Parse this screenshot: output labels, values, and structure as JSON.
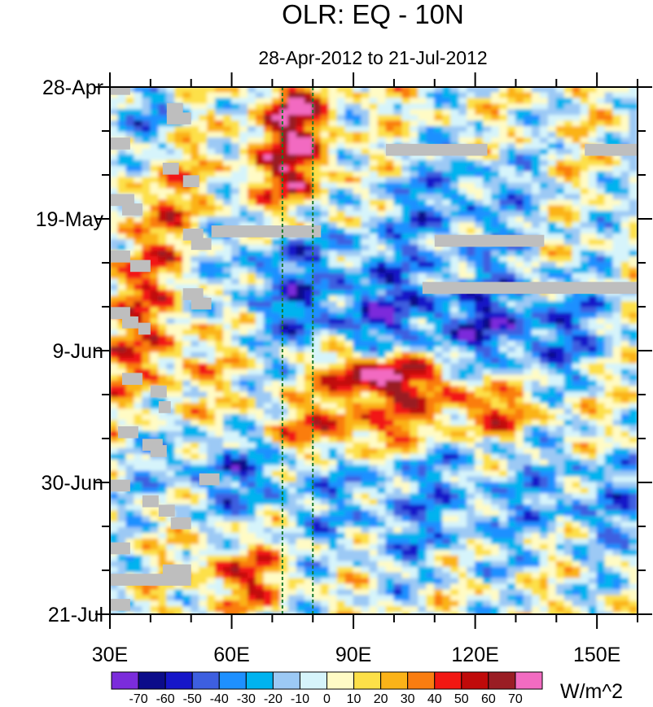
{
  "chart_data": {
    "type": "heatmap",
    "title": "OLR: EQ - 10N",
    "subtitle": "28-Apr-2012 to 21-Jul-2012",
    "x_tick_labels": [
      "30E",
      "60E",
      "90E",
      "120E",
      "150E"
    ],
    "x_tick_values": [
      30,
      60,
      90,
      120,
      150
    ],
    "x_range": [
      30,
      160
    ],
    "y_tick_labels": [
      "28-Apr",
      "19-May",
      "9-Jun",
      "30-Jun",
      "21-Jul"
    ],
    "y_tick_days": [
      0,
      21,
      42,
      63,
      84
    ],
    "y_range": [
      0,
      84
    ],
    "colorbar": {
      "units": "W/m^2",
      "labels": [
        "-70",
        "-60",
        "-50",
        "-40",
        "-30",
        "-20",
        "-10",
        "0",
        "10",
        "20",
        "30",
        "40",
        "50",
        "60",
        "70"
      ],
      "colors": [
        "#7b2cdb",
        "#0c0c8a",
        "#1616c8",
        "#3d5fe0",
        "#1e90ff",
        "#00b3ef",
        "#9cc9f5",
        "#d6f4fb",
        "#fffbc5",
        "#fde048",
        "#fbb318",
        "#fa7d10",
        "#f21712",
        "#c00a0a",
        "#9a1d24",
        "#f26bc1"
      ]
    },
    "reference_lines": {
      "style": "dashed",
      "color": "#1a7a2a",
      "longitudes": [
        72.5,
        80
      ]
    },
    "missing_color": "#bebebe",
    "missing_segments": [
      {
        "day": 0.3,
        "lon0": 30,
        "lon1": 35
      },
      {
        "day": 3.5,
        "lon0": 44,
        "lon1": 48
      },
      {
        "day": 5.0,
        "lon0": 44,
        "lon1": 50
      },
      {
        "day": 9.0,
        "lon0": 30,
        "lon1": 35
      },
      {
        "day": 10.0,
        "lon0": 98,
        "lon1": 123
      },
      {
        "day": 10.0,
        "lon0": 147,
        "lon1": 160
      },
      {
        "day": 13.0,
        "lon0": 43,
        "lon1": 47
      },
      {
        "day": 15.0,
        "lon0": 48,
        "lon1": 52
      },
      {
        "day": 18.0,
        "lon0": 30,
        "lon1": 36
      },
      {
        "day": 19.5,
        "lon0": 33,
        "lon1": 38
      },
      {
        "day": 23.0,
        "lon0": 55,
        "lon1": 82
      },
      {
        "day": 23.5,
        "lon0": 48,
        "lon1": 53
      },
      {
        "day": 24.5,
        "lon0": 110,
        "lon1": 137
      },
      {
        "day": 25.0,
        "lon0": 50,
        "lon1": 55
      },
      {
        "day": 27.0,
        "lon0": 30,
        "lon1": 35
      },
      {
        "day": 28.5,
        "lon0": 35,
        "lon1": 40
      },
      {
        "day": 32.0,
        "lon0": 107,
        "lon1": 160
      },
      {
        "day": 33.0,
        "lon0": 48,
        "lon1": 53
      },
      {
        "day": 34.5,
        "lon0": 50,
        "lon1": 55
      },
      {
        "day": 36.0,
        "lon0": 30,
        "lon1": 35
      },
      {
        "day": 37.5,
        "lon0": 33,
        "lon1": 37
      },
      {
        "day": 38.5,
        "lon0": 37,
        "lon1": 40
      },
      {
        "day": 46.5,
        "lon0": 33,
        "lon1": 38
      },
      {
        "day": 48.5,
        "lon0": 40,
        "lon1": 44
      },
      {
        "day": 51.0,
        "lon0": 42,
        "lon1": 45
      },
      {
        "day": 55.0,
        "lon0": 32,
        "lon1": 37
      },
      {
        "day": 57.0,
        "lon0": 38,
        "lon1": 43
      },
      {
        "day": 58.0,
        "lon0": 40,
        "lon1": 44
      },
      {
        "day": 62.5,
        "lon0": 52,
        "lon1": 57
      },
      {
        "day": 63.5,
        "lon0": 30,
        "lon1": 35
      },
      {
        "day": 66.0,
        "lon0": 38,
        "lon1": 42
      },
      {
        "day": 67.5,
        "lon0": 42,
        "lon1": 46
      },
      {
        "day": 69.5,
        "lon0": 45,
        "lon1": 50
      },
      {
        "day": 73.5,
        "lon0": 30,
        "lon1": 35
      },
      {
        "day": 77.0,
        "lon0": 43,
        "lon1": 50
      },
      {
        "day": 78.5,
        "lon0": 30,
        "lon1": 50
      },
      {
        "day": 82.5,
        "lon0": 30,
        "lon1": 35
      }
    ]
  }
}
